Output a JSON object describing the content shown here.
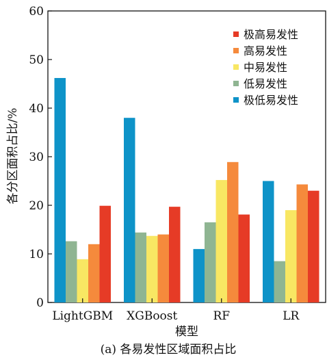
{
  "chart_data": {
    "type": "bar",
    "caption": "(a) 各易发性区域面积占比",
    "xlabel": "模型",
    "ylabel": "各分区面积占比/%",
    "ylim": [
      0,
      60
    ],
    "yticks": [
      0,
      10,
      20,
      30,
      40,
      50,
      60
    ],
    "categories": [
      "LightGBM",
      "XGBoost",
      "RF",
      "LR"
    ],
    "series": [
      {
        "name": "极低易发性",
        "color": "#0e93c8",
        "values": [
          46.2,
          38.0,
          11.0,
          25.0
        ]
      },
      {
        "name": "低易发性",
        "color": "#8fb592",
        "values": [
          12.6,
          14.4,
          16.5,
          8.5
        ]
      },
      {
        "name": "中易发性",
        "color": "#f8e763",
        "values": [
          8.9,
          13.7,
          25.2,
          19.0
        ]
      },
      {
        "name": "高易发性",
        "color": "#f58a3c",
        "values": [
          12.0,
          14.0,
          28.9,
          24.3
        ]
      },
      {
        "name": "极高易发性",
        "color": "#e63b26",
        "values": [
          19.9,
          19.7,
          18.1,
          23.0
        ]
      }
    ],
    "legend_order": [
      "极高易发性",
      "高易发性",
      "中易发性",
      "低易发性",
      "极低易发性"
    ],
    "legend_position": "top-right",
    "grid": false
  }
}
